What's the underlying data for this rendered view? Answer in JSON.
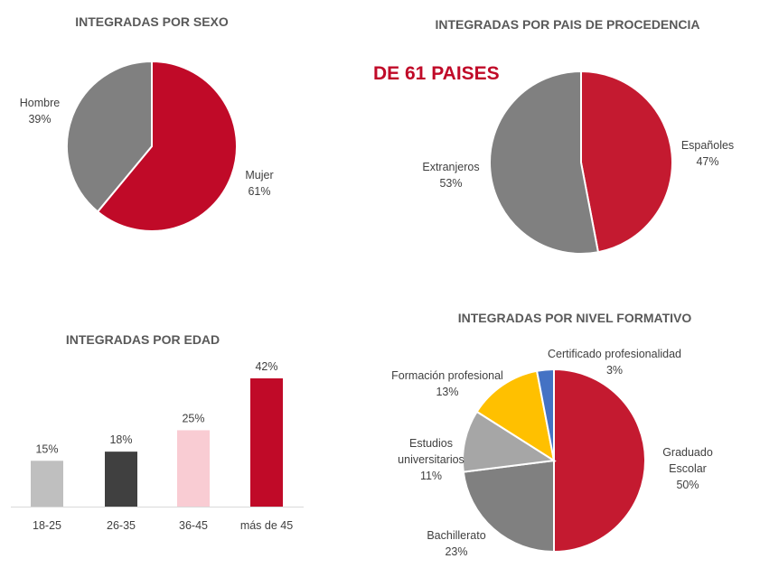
{
  "chart_data": [
    {
      "type": "pie",
      "title": "INTEGRADAS POR SEXO",
      "labels": [
        "Mujer",
        "Hombre"
      ],
      "values": [
        61,
        39
      ],
      "value_labels": [
        "61%",
        "39%"
      ],
      "colors": [
        "#c00a28",
        "#808080"
      ]
    },
    {
      "type": "pie",
      "title": "INTEGRADAS POR PAIS DE PROCEDENCIA",
      "annotation": "DE 61 PAISES",
      "labels": [
        "Españoles",
        "Extranjeros"
      ],
      "values": [
        47,
        53
      ],
      "value_labels": [
        "47%",
        "53%"
      ],
      "colors": [
        "#c41a30",
        "#808080"
      ]
    },
    {
      "type": "bar",
      "title": "INTEGRADAS POR EDAD",
      "categories": [
        "18-25",
        "26-35",
        "36-45",
        "más de 45"
      ],
      "values": [
        15,
        18,
        25,
        42
      ],
      "value_labels": [
        "15%",
        "18%",
        "25%",
        "42%"
      ],
      "colors": [
        "#bfbfbf",
        "#404040",
        "#f9ccd3",
        "#c00a28"
      ],
      "ylim": [
        0,
        45
      ]
    },
    {
      "type": "pie",
      "title": "INTEGRADAS POR NIVEL FORMATIVO",
      "labels": [
        "Graduado Escolar",
        "Bachillerato",
        "Estudios universitarios",
        "Formación profesional",
        "Certificado profesionalidad"
      ],
      "values": [
        50,
        23,
        11,
        13,
        3
      ],
      "value_labels": [
        "50%",
        "23%",
        "11%",
        "13%",
        "3%"
      ],
      "colors": [
        "#c41a30",
        "#808080",
        "#a6a6a6",
        "#ffc000",
        "#4472c4"
      ]
    }
  ]
}
